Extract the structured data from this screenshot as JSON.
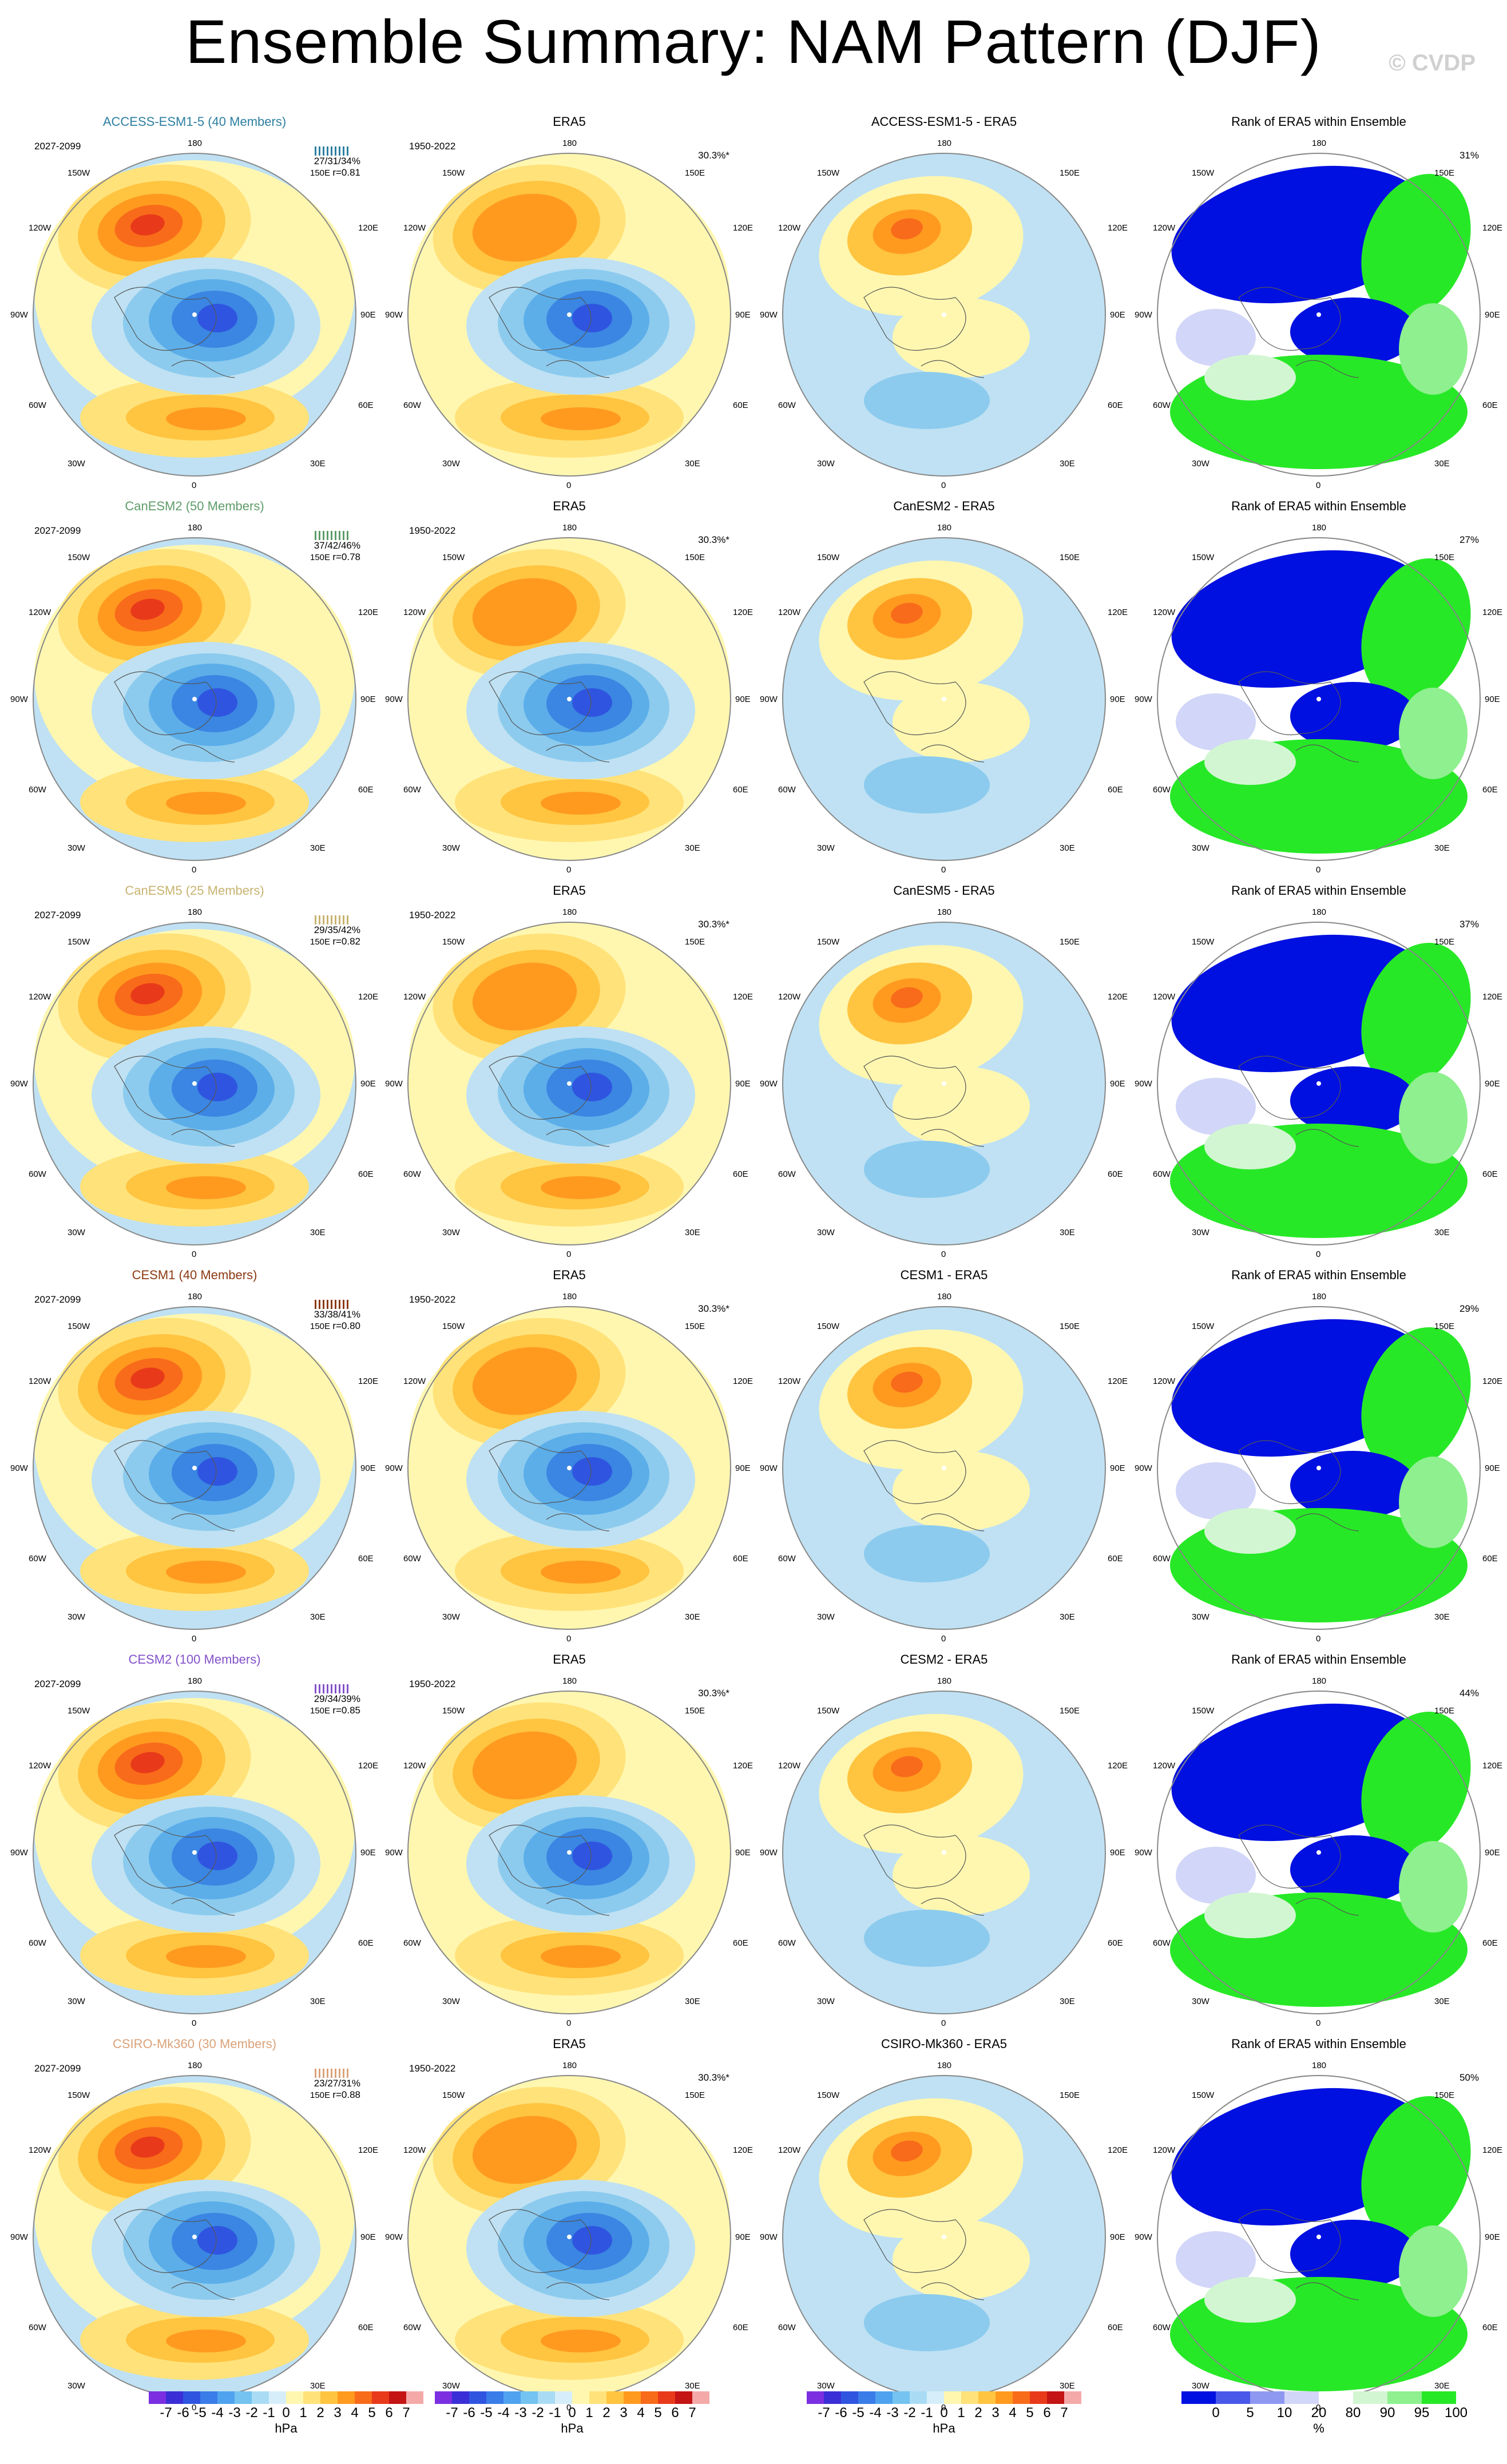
{
  "title": "Ensemble Summary: NAM Pattern (DJF)",
  "credit": "© CVDP",
  "obs_title": "ERA5",
  "rank_title": "Rank of ERA5 within Ensemble",
  "obs_period": "1950-2022",
  "obs_pct": "30.3%*",
  "model_period": "2027-2099",
  "rows": [
    {
      "model": "ACCESS-ESM1-5 (40 Members)",
      "diff": "ACCESS-ESM1-5 - ERA5",
      "stats": "27/31/34%",
      "r": "r=0.81",
      "rank_pct": "31%",
      "color": "#2d7fa0"
    },
    {
      "model": "CanESM2 (50 Members)",
      "diff": "CanESM2 - ERA5",
      "stats": "37/42/46%",
      "r": "r=0.78",
      "rank_pct": "27%",
      "color": "#5e9c68"
    },
    {
      "model": "CanESM5 (25 Members)",
      "diff": "CanESM5 - ERA5",
      "stats": "29/35/42%",
      "r": "r=0.82",
      "rank_pct": "37%",
      "color": "#c7b36f"
    },
    {
      "model": "CESM1 (40 Members)",
      "diff": "CESM1 - ERA5",
      "stats": "33/38/41%",
      "r": "r=0.80",
      "rank_pct": "29%",
      "color": "#8b3a12"
    },
    {
      "model": "CESM2 (100 Members)",
      "diff": "CESM2 - ERA5",
      "stats": "29/34/39%",
      "r": "r=0.85",
      "rank_pct": "44%",
      "color": "#8452c9"
    },
    {
      "model": "CSIRO-Mk360 (30 Members)",
      "diff": "CSIRO-Mk360 - ERA5",
      "stats": "23/27/31%",
      "r": "r=0.88",
      "rank_pct": "50%",
      "color": "#d9a27a"
    }
  ],
  "map_labels": {
    "top": "180",
    "bottom": "0",
    "left": "90W",
    "right": "90E",
    "ul1": "150W",
    "ul2": "120W",
    "ll1": "60W",
    "ll2": "30W",
    "ur1": "150E",
    "ur2": "120E",
    "lr1": "60E",
    "lr2": "30E"
  },
  "hpa_colorbar": {
    "labels": [
      "-7",
      "-6",
      "-5",
      "-4",
      "-3",
      "-2",
      "-1",
      "0",
      "1",
      "2",
      "3",
      "4",
      "5",
      "6",
      "7"
    ],
    "unit": "hPa",
    "colors": [
      "#7b2fe0",
      "#3a2fd6",
      "#2f55e0",
      "#3a7ce8",
      "#4fa3ee",
      "#74c3f0",
      "#a9dcf4",
      "#d6eef9",
      "#fff7b0",
      "#ffe27a",
      "#ffc440",
      "#ff9a1f",
      "#f86b1a",
      "#e83a1a",
      "#c41414",
      "#f4a9a9"
    ]
  },
  "rank_colorbar": {
    "labels": [
      "0",
      "5",
      "10",
      "20",
      "80",
      "90",
      "95",
      "100"
    ],
    "unit": "%",
    "colors": [
      "#0010e0",
      "#4a58ea",
      "#8f98f0",
      "#d2d6f8",
      "#ffffff",
      "#d2f6d2",
      "#8ef08e",
      "#27e827"
    ]
  }
}
